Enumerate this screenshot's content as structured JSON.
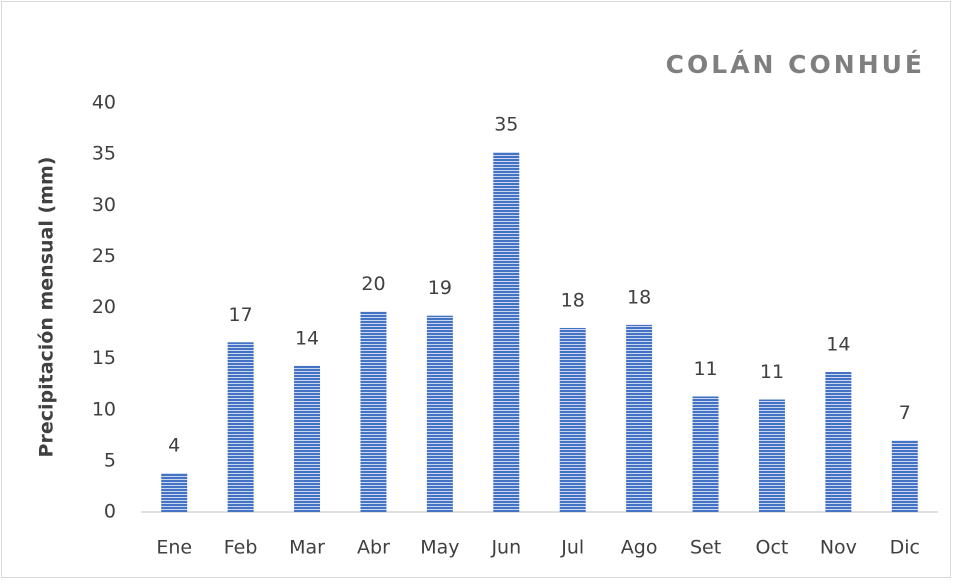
{
  "chart_data": {
    "type": "bar",
    "title": "COLÁN CONHUÉ",
    "y_label": "Precipitación mensual (mm)",
    "categories": [
      "Ene",
      "Feb",
      "Mar",
      "Abr",
      "May",
      "Jun",
      "Jul",
      "Ago",
      "Set",
      "Oct",
      "Nov",
      "Dic"
    ],
    "values": [
      3.8,
      16.6,
      14.3,
      19.6,
      19.2,
      35.2,
      18.0,
      18.3,
      11.3,
      11.0,
      13.7,
      7.0
    ],
    "value_labels": [
      "4",
      "17",
      "14",
      "20",
      "19",
      "35",
      "18",
      "18",
      "11",
      "11",
      "14",
      "7"
    ],
    "color": "#4472c4",
    "ylim": [
      0,
      40
    ],
    "yticks": [
      0,
      5,
      10,
      15,
      20,
      25,
      30,
      35,
      40
    ],
    "grid": false
  }
}
